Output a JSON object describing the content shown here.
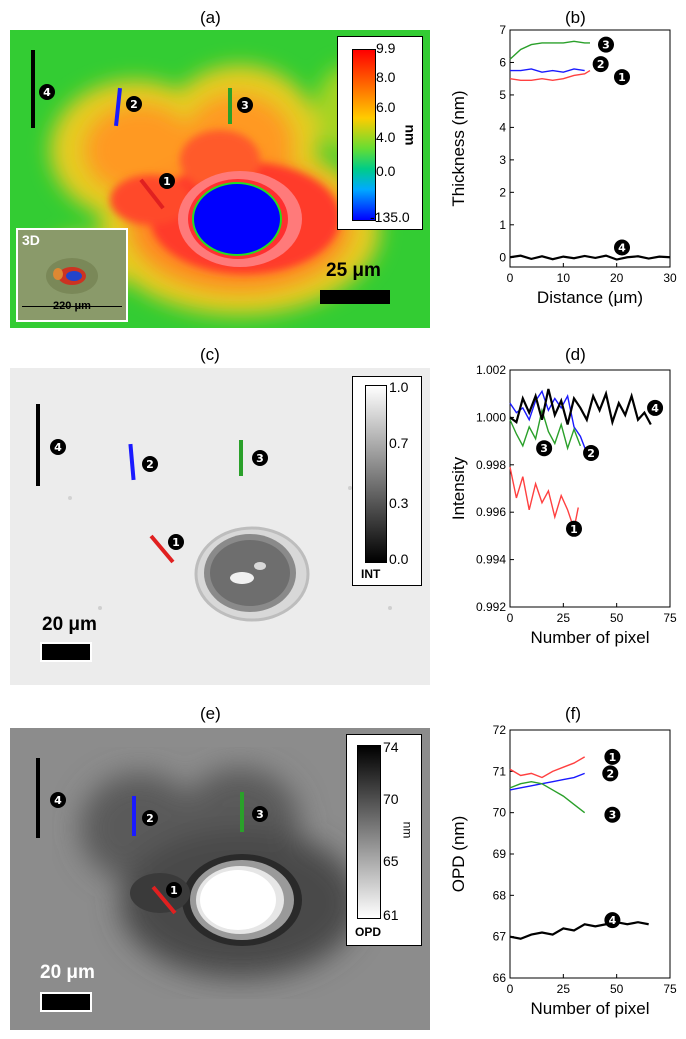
{
  "panels": {
    "a": {
      "label": "(a)",
      "colorbar": {
        "ticks": [
          "9.9",
          "8.0",
          "6.0",
          "4.0",
          "0.0",
          "-135.0"
        ],
        "unit": "nm"
      },
      "scalebar": "25 μm",
      "inset": {
        "tag": "3D",
        "width": "220 μm"
      },
      "markers": [
        "1",
        "2",
        "3",
        "4"
      ]
    },
    "b": {
      "label": "(b)",
      "chart_data": {
        "type": "line",
        "xlabel": "Distance (μm)",
        "ylabel": "Thickness (nm)",
        "xlim": [
          0,
          30
        ],
        "ylim": [
          -0.3,
          7
        ],
        "xticks": [
          "0",
          "10",
          "20",
          "30"
        ],
        "yticks": [
          "0",
          "1",
          "2",
          "3",
          "4",
          "5",
          "6",
          "7"
        ],
        "series": [
          {
            "name": "1",
            "color": "#ff4040",
            "x": [
              0,
              2,
              4,
              6,
              8,
              10,
              12,
              14,
              15
            ],
            "y": [
              5.5,
              5.45,
              5.45,
              5.5,
              5.45,
              5.5,
              5.6,
              5.65,
              5.75
            ]
          },
          {
            "name": "2",
            "color": "#1a1aff",
            "x": [
              0,
              2,
              4,
              6,
              8,
              10,
              12,
              14
            ],
            "y": [
              5.75,
              5.75,
              5.8,
              5.7,
              5.75,
              5.7,
              5.8,
              5.75
            ]
          },
          {
            "name": "3",
            "color": "#2aa02a",
            "x": [
              0,
              2,
              4,
              6,
              8,
              10,
              12,
              14,
              15
            ],
            "y": [
              6.1,
              6.4,
              6.55,
              6.6,
              6.6,
              6.6,
              6.65,
              6.6,
              6.6
            ]
          },
          {
            "name": "4",
            "color": "#000000",
            "x": [
              0,
              2,
              4,
              6,
              8,
              10,
              12,
              14,
              16,
              18,
              20,
              22,
              24,
              26,
              28,
              30
            ],
            "y": [
              0,
              0.05,
              -0.05,
              0.03,
              -0.06,
              0.02,
              -0.03,
              0.04,
              -0.02,
              0.05,
              -0.07,
              0.0,
              0.03,
              -0.04,
              0.02,
              0.0
            ]
          }
        ]
      }
    },
    "c": {
      "label": "(c)",
      "colorbar": {
        "ticks": [
          "1.0",
          "0.7",
          "0.3",
          "0.0"
        ],
        "unit": "INT"
      },
      "scalebar": "20 μm",
      "markers": [
        "1",
        "2",
        "3",
        "4"
      ]
    },
    "d": {
      "label": "(d)",
      "chart_data": {
        "type": "line",
        "xlabel": "Number of pixel",
        "ylabel": "Intensity",
        "xlim": [
          0,
          75
        ],
        "ylim": [
          0.992,
          1.002
        ],
        "xticks": [
          "0",
          "25",
          "50",
          "75"
        ],
        "yticks": [
          "0.992",
          "0.994",
          "0.996",
          "0.998",
          "1.000",
          "1.002"
        ],
        "series": [
          {
            "name": "1",
            "color": "#ff4040",
            "x": [
              0,
              3,
              6,
              9,
              12,
              15,
              18,
              21,
              24,
              27,
              30,
              32
            ],
            "y": [
              0.9979,
              0.9966,
              0.9975,
              0.9961,
              0.9972,
              0.9964,
              0.9969,
              0.9958,
              0.9967,
              0.9961,
              0.9953,
              0.9962
            ]
          },
          {
            "name": "2",
            "color": "#1a1aff",
            "x": [
              0,
              3,
              6,
              9,
              12,
              15,
              18,
              21,
              24,
              27,
              30,
              33,
              36
            ],
            "y": [
              1.0006,
              1.0002,
              1.0004,
              0.9999,
              1.0007,
              1.0011,
              1.0003,
              1.0008,
              1.0004,
              1.0009,
              0.9996,
              0.9992,
              0.9985
            ]
          },
          {
            "name": "3",
            "color": "#2aa02a",
            "x": [
              0,
              3,
              6,
              9,
              12,
              15,
              18,
              21,
              24,
              27,
              30,
              33
            ],
            "y": [
              0.9999,
              0.9993,
              0.9988,
              0.9996,
              0.9991,
              1.0003,
              0.9994,
              0.9989,
              0.9997,
              0.9987,
              0.9995,
              0.9988
            ]
          },
          {
            "name": "4",
            "color": "#000000",
            "x": [
              0,
              3,
              6,
              9,
              12,
              15,
              18,
              21,
              24,
              27,
              30,
              33,
              36,
              39,
              42,
              45,
              48,
              51,
              54,
              57,
              60,
              63,
              66
            ],
            "y": [
              1.0,
              0.9998,
              1.0008,
              1.0002,
              1.0009,
              0.9999,
              1.0012,
              1.0001,
              1.0007,
              0.9997,
              1.0008,
              1.0004,
              0.9999,
              1.0009,
              1.0003,
              1.001,
              0.9998,
              1.0006,
              1.0001,
              1.0009,
              0.9999,
              1.0002,
              0.9997
            ]
          }
        ]
      }
    },
    "e": {
      "label": "(e)",
      "colorbar": {
        "ticks": [
          "74",
          "70",
          "65",
          "61"
        ],
        "unit": "nm",
        "title": "OPD"
      },
      "scalebar": "20 μm",
      "markers": [
        "1",
        "2",
        "3",
        "4"
      ]
    },
    "f": {
      "label": "(f)",
      "chart_data": {
        "type": "line",
        "xlabel": "Number of pixel",
        "ylabel": "OPD (nm)",
        "xlim": [
          0,
          75
        ],
        "ylim": [
          66,
          72
        ],
        "xticks": [
          "0",
          "25",
          "50",
          "75"
        ],
        "yticks": [
          "66",
          "67",
          "68",
          "69",
          "70",
          "71",
          "72"
        ],
        "series": [
          {
            "name": "1",
            "color": "#ff4040",
            "x": [
              0,
              5,
              10,
              15,
              20,
              25,
              30,
              35
            ],
            "y": [
              71.05,
              70.9,
              70.95,
              70.85,
              71.0,
              71.1,
              71.2,
              71.35
            ]
          },
          {
            "name": "2",
            "color": "#1a1aff",
            "x": [
              0,
              5,
              10,
              15,
              20,
              25,
              30,
              35
            ],
            "y": [
              70.55,
              70.6,
              70.65,
              70.7,
              70.75,
              70.8,
              70.85,
              70.95
            ]
          },
          {
            "name": "3",
            "color": "#2aa02a",
            "x": [
              0,
              5,
              10,
              15,
              20,
              25,
              30,
              35
            ],
            "y": [
              70.6,
              70.7,
              70.75,
              70.7,
              70.55,
              70.4,
              70.2,
              70.0
            ]
          },
          {
            "name": "4",
            "color": "#000000",
            "x": [
              0,
              5,
              10,
              15,
              20,
              25,
              30,
              35,
              40,
              45,
              50,
              55,
              60,
              65
            ],
            "y": [
              67.0,
              66.95,
              67.05,
              67.1,
              67.05,
              67.2,
              67.15,
              67.3,
              67.25,
              67.3,
              67.35,
              67.3,
              67.35,
              67.3
            ]
          }
        ]
      }
    }
  }
}
